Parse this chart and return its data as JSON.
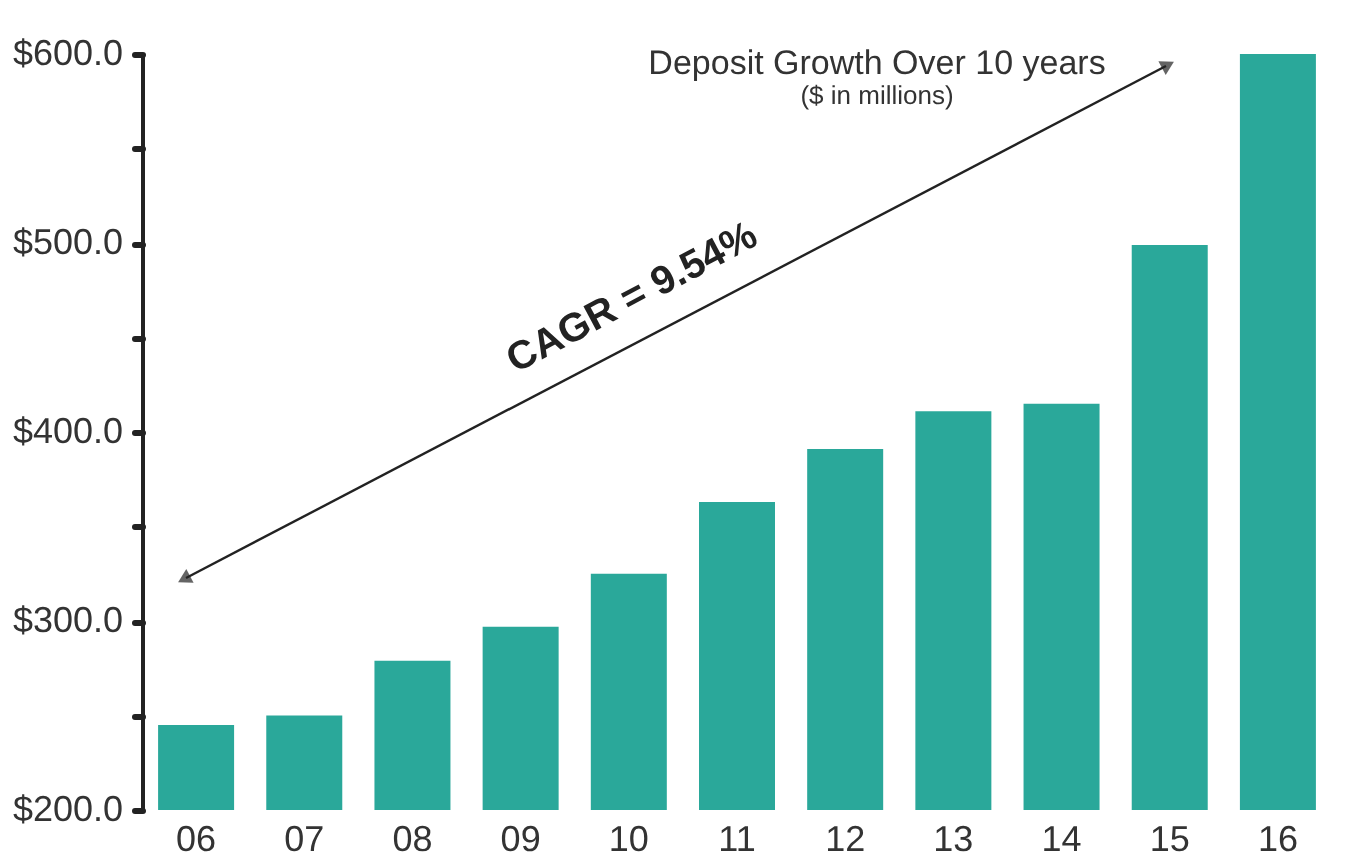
{
  "chart_data": {
    "type": "bar",
    "title": "Deposit Growth Over 10 years",
    "subtitle": "($ in millions)",
    "categories": [
      "06",
      "07",
      "08",
      "09",
      "10",
      "11",
      "12",
      "13",
      "14",
      "15",
      "16"
    ],
    "values": [
      245,
      250,
      279,
      297,
      325,
      363,
      391,
      411,
      415,
      499,
      600
    ],
    "color": "#2aa89a",
    "ylim": [
      200,
      600
    ],
    "yticks": [
      {
        "value": 200,
        "label": "$200.0"
      },
      {
        "value": 250,
        "label": null
      },
      {
        "value": 300,
        "label": "$300.0"
      },
      {
        "value": 350,
        "label": null
      },
      {
        "value": 400,
        "label": "$400.0"
      },
      {
        "value": 450,
        "label": null
      },
      {
        "value": 500,
        "label": "$500.0"
      },
      {
        "value": 550,
        "label": null
      },
      {
        "value": 600,
        "label": "$600.0"
      }
    ],
    "annotations": [
      "CAGR = 9.54%"
    ],
    "grid": false
  }
}
